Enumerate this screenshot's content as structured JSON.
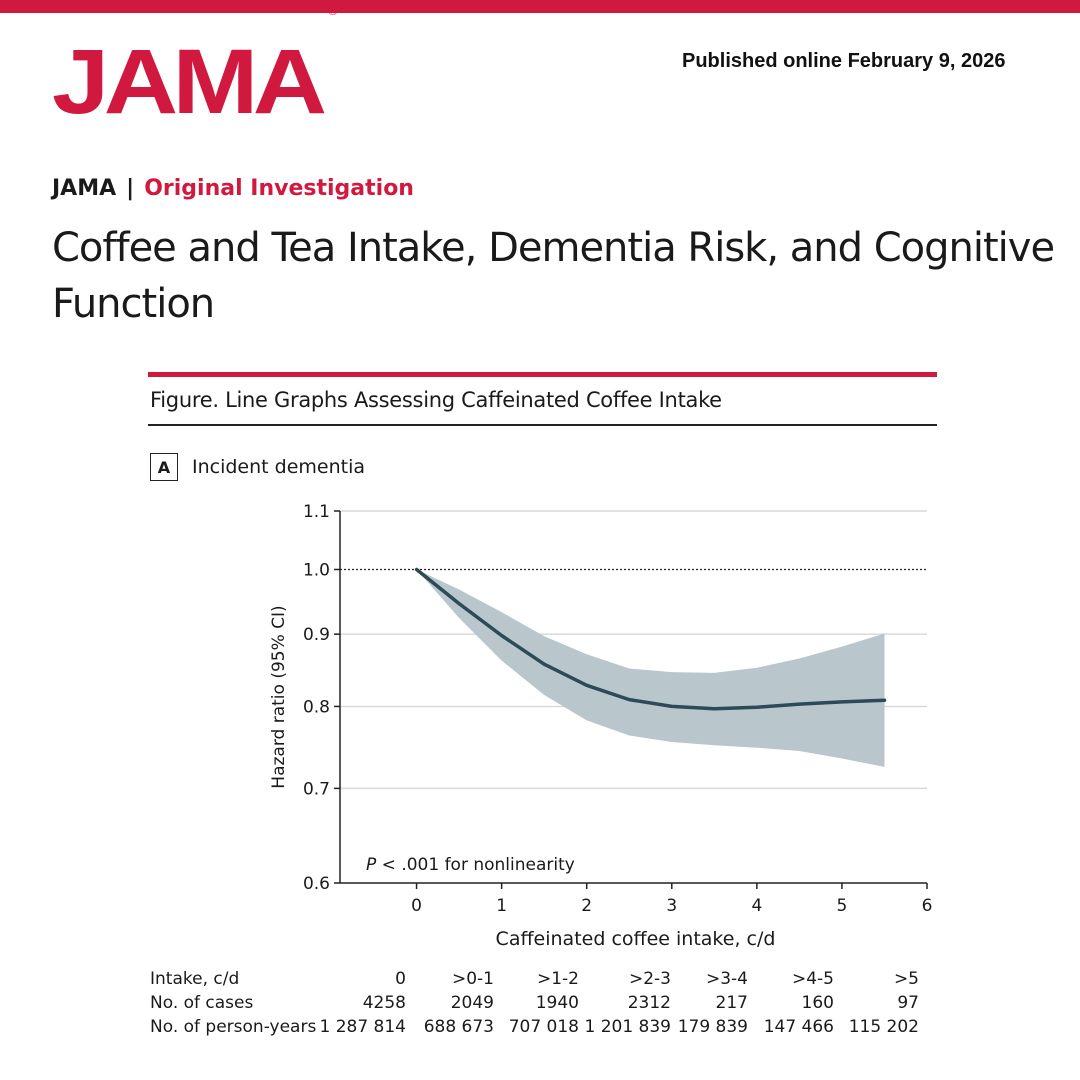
{
  "colors": {
    "brand_red": "#d1193f",
    "curve": "#2d4a57",
    "ci_band": "#b9c6cc",
    "gridline": "#d9d9d9"
  },
  "header": {
    "logo_text": "JAMA",
    "logo_mark": "®",
    "published": "Published online February 9, 2026"
  },
  "article": {
    "journal": "JAMA",
    "separator": "|",
    "section": "Original Investigation",
    "title_line1": "Coffee and Tea Intake, Dementia Risk, and Cognitive",
    "title_line2": "Function"
  },
  "figure": {
    "caption": "Figure. Line Graphs Assessing Caffeinated Coffee Intake",
    "panel_letter": "A",
    "panel_title": "Incident dementia"
  },
  "chart_data": {
    "type": "line",
    "title": "Incident dementia",
    "xlabel": "Caffeinated coffee intake, c/d",
    "ylabel": "Hazard ratio (95% CI)",
    "xlim": [
      -0.9,
      6
    ],
    "ylim": [
      0.6,
      1.1
    ],
    "log_y": true,
    "xticks": [
      0,
      1,
      2,
      3,
      4,
      5,
      6
    ],
    "yticks": [
      0.6,
      0.7,
      0.8,
      0.9,
      1.0,
      1.1
    ],
    "ytick_labels": [
      "0.6",
      "0.7",
      "0.8",
      "0.9",
      "1.0",
      "1.1"
    ],
    "reference_line": 1.0,
    "grid": "horizontal",
    "annotation_italic": "P",
    "annotation_rest": " < .001 for nonlinearity",
    "series": [
      {
        "x": [
          0,
          0.5,
          1,
          1.5,
          2,
          2.5,
          3,
          3.5,
          4,
          4.5,
          5,
          5.5
        ],
        "y": [
          1.0,
          0.946,
          0.898,
          0.857,
          0.828,
          0.809,
          0.8,
          0.797,
          0.799,
          0.803,
          0.806,
          0.808
        ],
        "lower": [
          1.0,
          0.924,
          0.862,
          0.815,
          0.782,
          0.763,
          0.755,
          0.751,
          0.748,
          0.744,
          0.735,
          0.725
        ],
        "upper": [
          1.0,
          0.968,
          0.933,
          0.897,
          0.871,
          0.851,
          0.846,
          0.845,
          0.852,
          0.865,
          0.882,
          0.901
        ]
      }
    ]
  },
  "table": {
    "row_labels": [
      "Intake, c/d",
      "No. of cases",
      "No. of person-years"
    ],
    "columns": [
      {
        "intake": "0",
        "cases": "4258",
        "person_years": "1 287 814"
      },
      {
        "intake": ">0-1",
        "cases": "2049",
        "person_years": "688 673"
      },
      {
        "intake": ">1-2",
        "cases": "1940",
        "person_years": "707 018"
      },
      {
        "intake": ">2-3",
        "cases": "2312",
        "person_years": "1 201 839"
      },
      {
        "intake": ">3-4",
        "cases": "217",
        "person_years": "179 839"
      },
      {
        "intake": ">4-5",
        "cases": "160",
        "person_years": "147 466"
      },
      {
        "intake": ">5",
        "cases": "97",
        "person_years": "115 202"
      }
    ]
  }
}
